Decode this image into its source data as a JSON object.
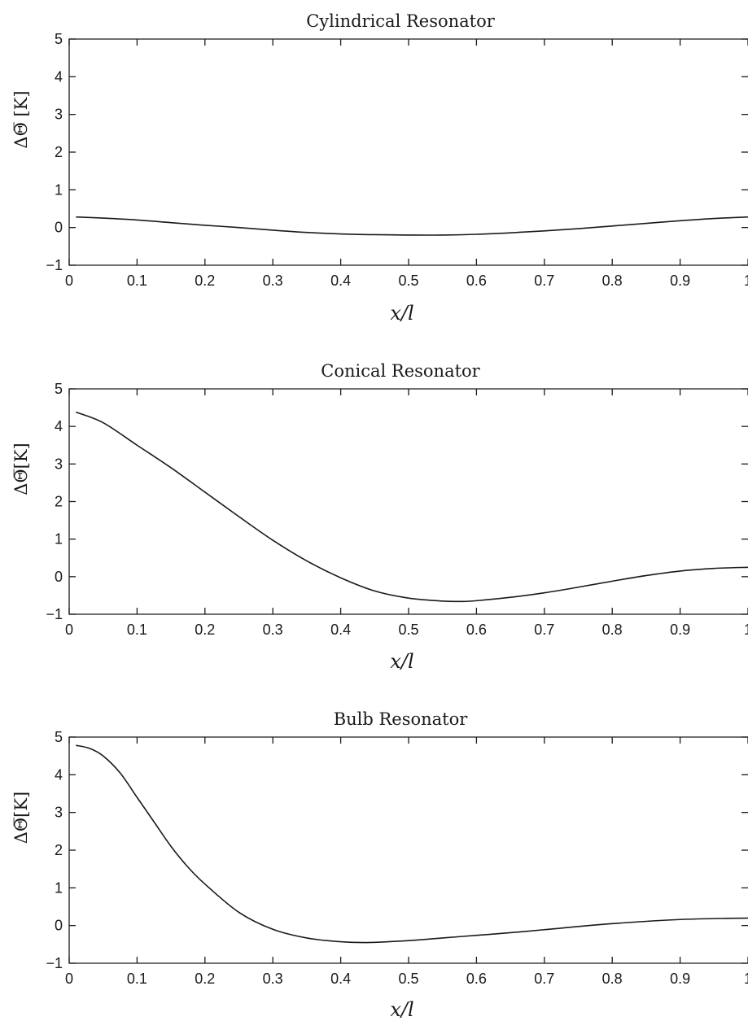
{
  "chart_data": [
    {
      "type": "line",
      "title": "Cylindrical Resonator",
      "xlabel": "x/l",
      "ylabel": "ΔΘ̅ [K]",
      "xlim": [
        0,
        1
      ],
      "ylim": [
        -1,
        5
      ],
      "x_ticks": [
        "0",
        "0.1",
        "0.2",
        "0.3",
        "0.4",
        "0.5",
        "0.6",
        "0.7",
        "0.8",
        "0.9",
        "1"
      ],
      "y_ticks": [
        "−1",
        "0",
        "1",
        "2",
        "3",
        "4",
        "5"
      ],
      "grid": false,
      "series": [
        {
          "x": [
            0.01,
            0.05,
            0.1,
            0.15,
            0.2,
            0.25,
            0.3,
            0.35,
            0.4,
            0.45,
            0.5,
            0.55,
            0.6,
            0.65,
            0.7,
            0.75,
            0.8,
            0.85,
            0.9,
            0.95,
            1.0
          ],
          "values": [
            0.28,
            0.25,
            0.2,
            0.13,
            0.06,
            0.0,
            -0.07,
            -0.13,
            -0.17,
            -0.19,
            -0.2,
            -0.2,
            -0.18,
            -0.14,
            -0.09,
            -0.03,
            0.04,
            0.11,
            0.18,
            0.24,
            0.28
          ]
        }
      ]
    },
    {
      "type": "line",
      "title": "Conical Resonator",
      "xlabel": "x/l",
      "ylabel": "ΔΘ̅[K]",
      "xlim": [
        0,
        1
      ],
      "ylim": [
        -1,
        5
      ],
      "x_ticks": [
        "0",
        "0.1",
        "0.2",
        "0.3",
        "0.4",
        "0.5",
        "0.6",
        "0.7",
        "0.8",
        "0.9",
        "1"
      ],
      "y_ticks": [
        "−1",
        "0",
        "1",
        "2",
        "3",
        "4",
        "5"
      ],
      "grid": false,
      "series": [
        {
          "x": [
            0.01,
            0.05,
            0.1,
            0.15,
            0.2,
            0.25,
            0.3,
            0.35,
            0.4,
            0.45,
            0.5,
            0.55,
            0.58,
            0.6,
            0.65,
            0.7,
            0.75,
            0.8,
            0.85,
            0.9,
            0.95,
            1.0
          ],
          "values": [
            4.38,
            4.1,
            3.5,
            2.9,
            2.25,
            1.6,
            0.97,
            0.42,
            -0.03,
            -0.38,
            -0.57,
            -0.65,
            -0.66,
            -0.64,
            -0.55,
            -0.43,
            -0.28,
            -0.12,
            0.03,
            0.15,
            0.22,
            0.25
          ]
        }
      ]
    },
    {
      "type": "line",
      "title": "Bulb Resonator",
      "xlabel": "x/l",
      "ylabel": "ΔΘ̅[K]",
      "xlim": [
        0,
        1
      ],
      "ylim": [
        -1,
        5
      ],
      "x_ticks": [
        "0",
        "0.1",
        "0.2",
        "0.3",
        "0.4",
        "0.5",
        "0.6",
        "0.7",
        "0.8",
        "0.9",
        "1"
      ],
      "y_ticks": [
        "−1",
        "0",
        "1",
        "2",
        "3",
        "4",
        "5"
      ],
      "grid": false,
      "series": [
        {
          "x": [
            0.01,
            0.03,
            0.05,
            0.075,
            0.1,
            0.125,
            0.15,
            0.175,
            0.2,
            0.25,
            0.3,
            0.35,
            0.4,
            0.44,
            0.5,
            0.55,
            0.6,
            0.65,
            0.7,
            0.8,
            0.9,
            1.0
          ],
          "values": [
            4.78,
            4.7,
            4.5,
            4.05,
            3.4,
            2.75,
            2.1,
            1.55,
            1.1,
            0.35,
            -0.1,
            -0.33,
            -0.43,
            -0.45,
            -0.4,
            -0.33,
            -0.26,
            -0.19,
            -0.11,
            0.05,
            0.16,
            0.2
          ]
        }
      ]
    }
  ]
}
